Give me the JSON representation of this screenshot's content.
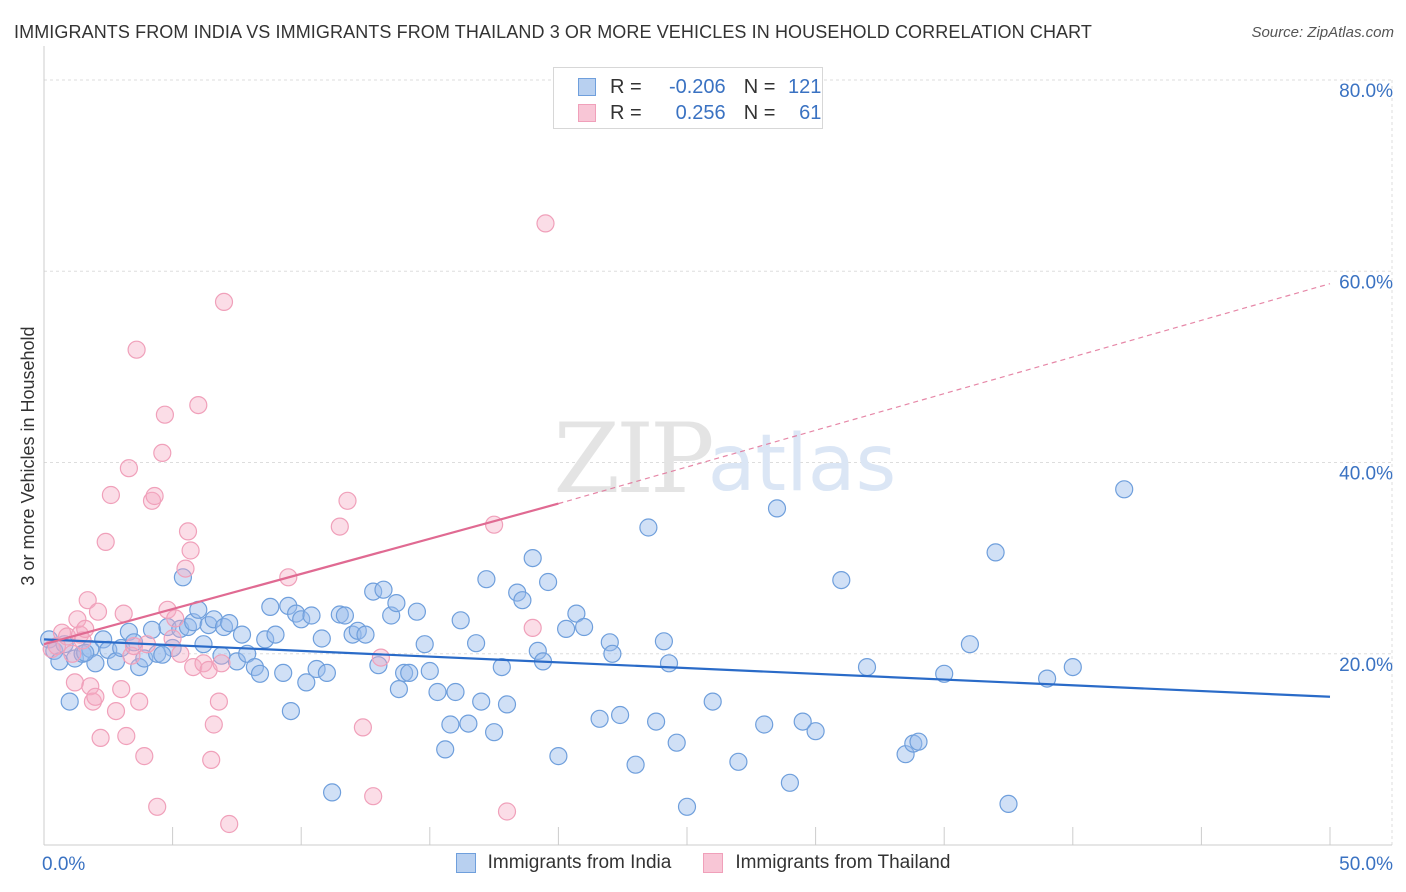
{
  "chart_data": {
    "type": "scatter",
    "title": "IMMIGRANTS FROM INDIA VS IMMIGRANTS FROM THAILAND 3 OR MORE VEHICLES IN HOUSEHOLD CORRELATION CHART",
    "source": "Source: ZipAtlas.com",
    "watermark": {
      "zip": "ZIP",
      "atlas": "atlas"
    },
    "xlabel": "",
    "ylabel": "3 or more Vehicles in Household",
    "xlim": [
      0,
      50
    ],
    "ylim": [
      0,
      80
    ],
    "x_tick_labels": [
      {
        "value": 0,
        "label": "0.0%"
      },
      {
        "value": 50,
        "label": "50.0%"
      }
    ],
    "x_minor_ticks": [
      5,
      10,
      15,
      20,
      25,
      30,
      35,
      40,
      45
    ],
    "y_tick_labels": [
      {
        "value": 20,
        "label": "20.0%"
      },
      {
        "value": 40,
        "label": "40.0%"
      },
      {
        "value": 60,
        "label": "60.0%"
      },
      {
        "value": 80,
        "label": "80.0%"
      }
    ],
    "grid": true,
    "legend": {
      "r_label": "R =",
      "n_label": "N =",
      "entries": [
        {
          "name": "Immigrants from India",
          "r": "-0.206",
          "n": "121"
        },
        {
          "name": "Immigrants from Thailand",
          "r": "0.256",
          "n": "61"
        }
      ]
    },
    "series": [
      {
        "name": "Immigrants from India",
        "color": "#6f9fdc",
        "line_color": "#2a6bc8",
        "trend": {
          "x0": 0,
          "y0": 21.5,
          "x1": 50,
          "y1": 15.5
        },
        "points": [
          [
            0.2,
            21.5
          ],
          [
            0.4,
            20.3
          ],
          [
            0.6,
            19.2
          ],
          [
            0.8,
            21.0
          ],
          [
            1.0,
            15.0
          ],
          [
            1.2,
            19.5
          ],
          [
            1.5,
            20.0
          ],
          [
            1.8,
            20.5
          ],
          [
            2.0,
            19.0
          ],
          [
            2.3,
            21.5
          ],
          [
            2.5,
            20.4
          ],
          [
            2.8,
            19.2
          ],
          [
            3.0,
            20.6
          ],
          [
            3.3,
            22.3
          ],
          [
            3.5,
            21.2
          ],
          [
            3.7,
            18.6
          ],
          [
            3.9,
            19.5
          ],
          [
            4.2,
            22.5
          ],
          [
            4.4,
            20.0
          ],
          [
            4.8,
            22.8
          ],
          [
            5.0,
            20.6
          ],
          [
            5.3,
            22.6
          ],
          [
            5.4,
            28.0
          ],
          [
            5.6,
            22.8
          ],
          [
            5.8,
            23.3
          ],
          [
            6.0,
            24.6
          ],
          [
            6.2,
            21.0
          ],
          [
            6.4,
            23.0
          ],
          [
            6.6,
            23.6
          ],
          [
            7.0,
            22.8
          ],
          [
            7.2,
            23.2
          ],
          [
            7.5,
            19.2
          ],
          [
            7.7,
            22.0
          ],
          [
            7.9,
            20.0
          ],
          [
            8.2,
            18.6
          ],
          [
            8.4,
            17.9
          ],
          [
            8.6,
            21.5
          ],
          [
            8.8,
            24.9
          ],
          [
            9.0,
            22.0
          ],
          [
            9.3,
            18.0
          ],
          [
            9.5,
            25.0
          ],
          [
            9.6,
            14.0
          ],
          [
            9.8,
            24.2
          ],
          [
            10.0,
            23.6
          ],
          [
            10.2,
            17.0
          ],
          [
            10.4,
            24.0
          ],
          [
            10.6,
            18.4
          ],
          [
            10.8,
            21.6
          ],
          [
            11.0,
            18.0
          ],
          [
            11.2,
            5.5
          ],
          [
            11.5,
            24.1
          ],
          [
            11.7,
            24.0
          ],
          [
            12.0,
            22.0
          ],
          [
            12.2,
            22.4
          ],
          [
            12.5,
            22.0
          ],
          [
            12.8,
            26.5
          ],
          [
            13.0,
            18.8
          ],
          [
            13.2,
            26.7
          ],
          [
            13.5,
            24.0
          ],
          [
            13.7,
            25.3
          ],
          [
            13.8,
            16.3
          ],
          [
            14.0,
            18.0
          ],
          [
            14.2,
            18.0
          ],
          [
            14.5,
            24.4
          ],
          [
            14.8,
            21.0
          ],
          [
            15.0,
            18.2
          ],
          [
            15.3,
            16.0
          ],
          [
            15.6,
            10.0
          ],
          [
            15.8,
            12.6
          ],
          [
            16.0,
            16.0
          ],
          [
            16.2,
            23.5
          ],
          [
            16.5,
            12.7
          ],
          [
            16.8,
            21.1
          ],
          [
            17.0,
            15.0
          ],
          [
            17.2,
            27.8
          ],
          [
            17.5,
            11.8
          ],
          [
            17.8,
            18.6
          ],
          [
            18.0,
            14.7
          ],
          [
            18.4,
            26.4
          ],
          [
            18.6,
            25.6
          ],
          [
            19.0,
            30.0
          ],
          [
            19.2,
            20.3
          ],
          [
            19.4,
            19.2
          ],
          [
            19.6,
            27.5
          ],
          [
            20.0,
            9.3
          ],
          [
            20.3,
            22.6
          ],
          [
            20.7,
            24.2
          ],
          [
            21.0,
            22.8
          ],
          [
            21.6,
            13.2
          ],
          [
            22.0,
            21.2
          ],
          [
            22.1,
            20.0
          ],
          [
            22.4,
            13.6
          ],
          [
            23.0,
            8.4
          ],
          [
            23.5,
            33.2
          ],
          [
            23.8,
            12.9
          ],
          [
            24.1,
            21.3
          ],
          [
            24.3,
            19.0
          ],
          [
            24.6,
            10.7
          ],
          [
            25.0,
            4.0
          ],
          [
            26.0,
            15.0
          ],
          [
            27.0,
            8.7
          ],
          [
            28.0,
            12.6
          ],
          [
            28.5,
            35.2
          ],
          [
            29.0,
            6.5
          ],
          [
            29.5,
            12.9
          ],
          [
            30.0,
            11.9
          ],
          [
            31.0,
            27.7
          ],
          [
            32.0,
            18.6
          ],
          [
            33.5,
            9.5
          ],
          [
            33.8,
            10.6
          ],
          [
            34.0,
            10.8
          ],
          [
            35.0,
            17.9
          ],
          [
            36.0,
            21.0
          ],
          [
            37.0,
            30.6
          ],
          [
            37.5,
            4.3
          ],
          [
            39.0,
            17.4
          ],
          [
            40.0,
            18.6
          ],
          [
            42.0,
            37.2
          ],
          [
            1.6,
            20.1
          ],
          [
            4.6,
            19.9
          ],
          [
            6.9,
            19.8
          ]
        ]
      },
      {
        "name": "Immigrants from Thailand",
        "color": "#f0a0ba",
        "line_color": "#e06a92",
        "trend": {
          "x0": 0,
          "y0": 21.0,
          "x1": 20,
          "y1": 35.7
        },
        "trend_dashed": {
          "x0": 20,
          "y0": 35.7,
          "x1": 50,
          "y1": 58.7
        },
        "points": [
          [
            0.3,
            20.5
          ],
          [
            0.5,
            20.8
          ],
          [
            0.7,
            22.2
          ],
          [
            0.9,
            21.8
          ],
          [
            1.1,
            20.0
          ],
          [
            1.2,
            17.0
          ],
          [
            1.3,
            23.6
          ],
          [
            1.4,
            22.0
          ],
          [
            1.5,
            21.4
          ],
          [
            1.6,
            22.6
          ],
          [
            1.7,
            25.6
          ],
          [
            1.8,
            16.6
          ],
          [
            1.9,
            15.0
          ],
          [
            2.0,
            15.5
          ],
          [
            2.1,
            24.4
          ],
          [
            2.2,
            11.2
          ],
          [
            2.4,
            31.7
          ],
          [
            2.6,
            36.6
          ],
          [
            2.8,
            14.0
          ],
          [
            3.0,
            16.3
          ],
          [
            3.1,
            24.2
          ],
          [
            3.2,
            11.4
          ],
          [
            3.3,
            39.4
          ],
          [
            3.4,
            19.8
          ],
          [
            3.5,
            20.8
          ],
          [
            3.6,
            51.8
          ],
          [
            3.7,
            15.0
          ],
          [
            3.9,
            9.3
          ],
          [
            4.0,
            21.0
          ],
          [
            4.2,
            36.0
          ],
          [
            4.3,
            36.5
          ],
          [
            4.4,
            4.0
          ],
          [
            4.6,
            41.0
          ],
          [
            4.7,
            45.0
          ],
          [
            4.8,
            24.6
          ],
          [
            5.0,
            21.6
          ],
          [
            5.1,
            23.7
          ],
          [
            5.3,
            20.0
          ],
          [
            5.5,
            28.9
          ],
          [
            5.6,
            32.8
          ],
          [
            5.7,
            30.8
          ],
          [
            5.8,
            18.6
          ],
          [
            6.0,
            46.0
          ],
          [
            6.2,
            19.0
          ],
          [
            6.4,
            18.3
          ],
          [
            6.5,
            8.9
          ],
          [
            6.6,
            12.6
          ],
          [
            6.8,
            15.0
          ],
          [
            6.9,
            19.0
          ],
          [
            7.0,
            56.8
          ],
          [
            7.2,
            2.2
          ],
          [
            9.5,
            28.0
          ],
          [
            11.5,
            33.3
          ],
          [
            11.8,
            36.0
          ],
          [
            12.4,
            12.3
          ],
          [
            12.8,
            5.1
          ],
          [
            13.1,
            19.6
          ],
          [
            17.5,
            33.5
          ],
          [
            18.0,
            3.5
          ],
          [
            19.0,
            22.7
          ],
          [
            19.5,
            65.0
          ]
        ]
      }
    ]
  }
}
